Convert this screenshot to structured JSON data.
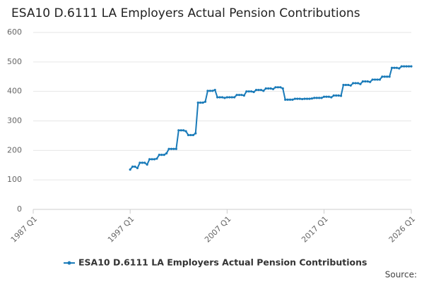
{
  "chart_data": {
    "type": "line",
    "title": "ESA10 D.6111 LA Employers Actual Pension Contributions",
    "source": "Source:",
    "categories": [
      "1987 Q1",
      null,
      null,
      null,
      null,
      null,
      null,
      null,
      null,
      null,
      null,
      null,
      null,
      null,
      null,
      null,
      null,
      null,
      null,
      null,
      null,
      null,
      null,
      null,
      null,
      null,
      null,
      null,
      null,
      null,
      null,
      null,
      null,
      null,
      null,
      null,
      null,
      null,
      null,
      null,
      "1997 Q1",
      null,
      null,
      null,
      null,
      null,
      null,
      null,
      null,
      null,
      null,
      null,
      null,
      null,
      null,
      null,
      null,
      null,
      null,
      null,
      null,
      null,
      null,
      null,
      null,
      null,
      null,
      null,
      null,
      null,
      null,
      null,
      null,
      null,
      null,
      null,
      null,
      null,
      null,
      null,
      "2007 Q1",
      null,
      null,
      null,
      null,
      null,
      null,
      null,
      null,
      null,
      null,
      null,
      null,
      null,
      null,
      null,
      null,
      null,
      null,
      null,
      null,
      null,
      null,
      null,
      null,
      null,
      null,
      null,
      null,
      null,
      null,
      null,
      null,
      null,
      null,
      null,
      null,
      null,
      null,
      null,
      "2017 Q1",
      null,
      null,
      null,
      null,
      null,
      null,
      null,
      null,
      null,
      null,
      null,
      null,
      null,
      null,
      null,
      null,
      null,
      null,
      null,
      null,
      null,
      null,
      null,
      null,
      null,
      null,
      null,
      null,
      null,
      null,
      null,
      null,
      null,
      null,
      null,
      "2026 Q1"
    ],
    "series": [
      {
        "name": "ESA10 D.6111 LA Employers Actual Pension Contributions",
        "color": "#1a7bb9",
        "values": [
          null,
          null,
          null,
          null,
          null,
          null,
          null,
          null,
          null,
          null,
          null,
          null,
          null,
          null,
          null,
          null,
          null,
          null,
          null,
          null,
          null,
          null,
          null,
          null,
          null,
          null,
          null,
          null,
          null,
          null,
          null,
          null,
          null,
          null,
          null,
          null,
          null,
          null,
          null,
          null,
          135,
          145,
          145,
          140,
          158,
          158,
          158,
          152,
          170,
          170,
          170,
          172,
          185,
          185,
          185,
          190,
          205,
          205,
          205,
          205,
          268,
          268,
          268,
          265,
          252,
          252,
          252,
          258,
          362,
          362,
          362,
          365,
          402,
          402,
          402,
          405,
          380,
          380,
          380,
          378,
          380,
          380,
          380,
          380,
          388,
          388,
          388,
          386,
          400,
          400,
          400,
          398,
          405,
          405,
          405,
          402,
          410,
          410,
          410,
          408,
          414,
          414,
          414,
          410,
          372,
          372,
          372,
          372,
          375,
          375,
          375,
          374,
          375,
          375,
          375,
          376,
          378,
          378,
          378,
          378,
          382,
          382,
          382,
          380,
          386,
          386,
          386,
          385,
          422,
          422,
          422,
          420,
          428,
          428,
          428,
          425,
          434,
          434,
          434,
          432,
          440,
          440,
          440,
          440,
          450,
          450,
          450,
          450,
          480,
          480,
          480,
          478,
          485,
          485,
          485,
          485,
          485
        ]
      }
    ],
    "ylim": [
      0,
      600
    ],
    "yticks": [
      0,
      100,
      200,
      300,
      400,
      500,
      600
    ],
    "grid": true
  }
}
